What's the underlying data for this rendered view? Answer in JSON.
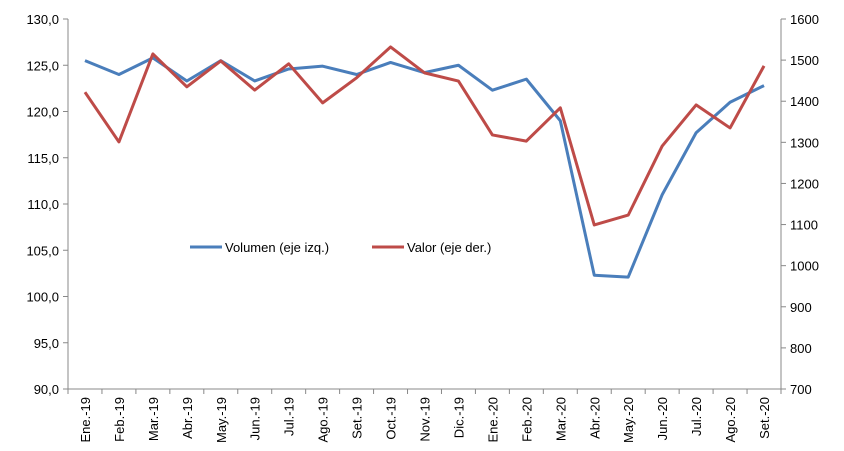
{
  "chart_data": {
    "type": "line",
    "categories": [
      "Ene.-19",
      "Feb.-19",
      "Mar.-19",
      "Abr.-19",
      "May.-19",
      "Jun.-19",
      "Jul.-19",
      "Ago.-19",
      "Set.-19",
      "Oct.-19",
      "Nov.-19",
      "Dic.-19",
      "Ene.-20",
      "Feb.-20",
      "Mar.-20",
      "Abr.-20",
      "May.-20",
      "Jun.-20",
      "Jul.-20",
      "Ago.-20",
      "Set.-20"
    ],
    "series": [
      {
        "name": "Volumen (eje izq.)",
        "color": "#4a7ebb",
        "values": [
          125.5,
          124.0,
          125.8,
          123.3,
          125.5,
          123.3,
          124.6,
          124.9,
          124.0,
          125.3,
          124.2,
          125.0,
          122.3,
          123.5,
          119.0,
          102.3,
          102.1,
          111.0,
          117.7,
          121.0,
          122.8
        ]
      },
      {
        "name": "Valor (eje der.)",
        "color": "#be4b48",
        "axis": "y2",
        "values": [
          1422,
          1301,
          1515,
          1435,
          1498,
          1427,
          1491,
          1396,
          1457,
          1532,
          1469,
          1449,
          1318,
          1303,
          1384,
          1099,
          1123,
          1291,
          1391,
          1335,
          1486
        ]
      }
    ],
    "ylim": [
      90,
      130
    ],
    "yticks": [
      {
        "value": 90,
        "label": "90,0"
      },
      {
        "value": 95,
        "label": "95,0"
      },
      {
        "value": 100,
        "label": "100,0"
      },
      {
        "value": 105,
        "label": "105,0"
      },
      {
        "value": 110,
        "label": "110,0"
      },
      {
        "value": 115,
        "label": "115,0"
      },
      {
        "value": 120,
        "label": "120,0"
      },
      {
        "value": 125,
        "label": "125,0"
      },
      {
        "value": 130,
        "label": "130,0"
      }
    ],
    "y2lim": [
      700,
      1600
    ],
    "y2ticks": [
      700,
      800,
      900,
      1000,
      1100,
      1200,
      1300,
      1400,
      1500,
      1600
    ],
    "grid": false
  }
}
